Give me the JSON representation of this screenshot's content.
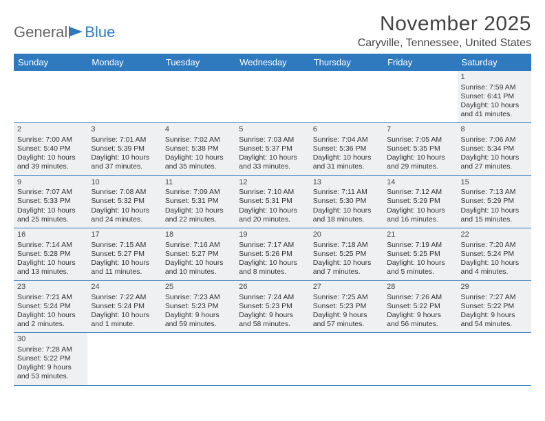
{
  "brand": {
    "part1": "General",
    "part2": "Blue",
    "logo_color": "#2f7abf",
    "text_color": "#666666"
  },
  "title": "November 2025",
  "location": "Caryville, Tennessee, United States",
  "colors": {
    "header_bg": "#2f7abf",
    "header_text": "#ffffff",
    "cell_gray": "#eef0f1",
    "divider": "#2f7abf"
  },
  "day_names": [
    "Sunday",
    "Monday",
    "Tuesday",
    "Wednesday",
    "Thursday",
    "Friday",
    "Saturday"
  ],
  "weeks": [
    [
      null,
      null,
      null,
      null,
      null,
      null,
      {
        "n": "1",
        "sr": "Sunrise: 7:59 AM",
        "ss": "Sunset: 6:41 PM",
        "dl": "Daylight: 10 hours and 41 minutes."
      }
    ],
    [
      {
        "n": "2",
        "sr": "Sunrise: 7:00 AM",
        "ss": "Sunset: 5:40 PM",
        "dl": "Daylight: 10 hours and 39 minutes."
      },
      {
        "n": "3",
        "sr": "Sunrise: 7:01 AM",
        "ss": "Sunset: 5:39 PM",
        "dl": "Daylight: 10 hours and 37 minutes."
      },
      {
        "n": "4",
        "sr": "Sunrise: 7:02 AM",
        "ss": "Sunset: 5:38 PM",
        "dl": "Daylight: 10 hours and 35 minutes."
      },
      {
        "n": "5",
        "sr": "Sunrise: 7:03 AM",
        "ss": "Sunset: 5:37 PM",
        "dl": "Daylight: 10 hours and 33 minutes."
      },
      {
        "n": "6",
        "sr": "Sunrise: 7:04 AM",
        "ss": "Sunset: 5:36 PM",
        "dl": "Daylight: 10 hours and 31 minutes."
      },
      {
        "n": "7",
        "sr": "Sunrise: 7:05 AM",
        "ss": "Sunset: 5:35 PM",
        "dl": "Daylight: 10 hours and 29 minutes."
      },
      {
        "n": "8",
        "sr": "Sunrise: 7:06 AM",
        "ss": "Sunset: 5:34 PM",
        "dl": "Daylight: 10 hours and 27 minutes."
      }
    ],
    [
      {
        "n": "9",
        "sr": "Sunrise: 7:07 AM",
        "ss": "Sunset: 5:33 PM",
        "dl": "Daylight: 10 hours and 25 minutes."
      },
      {
        "n": "10",
        "sr": "Sunrise: 7:08 AM",
        "ss": "Sunset: 5:32 PM",
        "dl": "Daylight: 10 hours and 24 minutes."
      },
      {
        "n": "11",
        "sr": "Sunrise: 7:09 AM",
        "ss": "Sunset: 5:31 PM",
        "dl": "Daylight: 10 hours and 22 minutes."
      },
      {
        "n": "12",
        "sr": "Sunrise: 7:10 AM",
        "ss": "Sunset: 5:31 PM",
        "dl": "Daylight: 10 hours and 20 minutes."
      },
      {
        "n": "13",
        "sr": "Sunrise: 7:11 AM",
        "ss": "Sunset: 5:30 PM",
        "dl": "Daylight: 10 hours and 18 minutes."
      },
      {
        "n": "14",
        "sr": "Sunrise: 7:12 AM",
        "ss": "Sunset: 5:29 PM",
        "dl": "Daylight: 10 hours and 16 minutes."
      },
      {
        "n": "15",
        "sr": "Sunrise: 7:13 AM",
        "ss": "Sunset: 5:29 PM",
        "dl": "Daylight: 10 hours and 15 minutes."
      }
    ],
    [
      {
        "n": "16",
        "sr": "Sunrise: 7:14 AM",
        "ss": "Sunset: 5:28 PM",
        "dl": "Daylight: 10 hours and 13 minutes."
      },
      {
        "n": "17",
        "sr": "Sunrise: 7:15 AM",
        "ss": "Sunset: 5:27 PM",
        "dl": "Daylight: 10 hours and 11 minutes."
      },
      {
        "n": "18",
        "sr": "Sunrise: 7:16 AM",
        "ss": "Sunset: 5:27 PM",
        "dl": "Daylight: 10 hours and 10 minutes."
      },
      {
        "n": "19",
        "sr": "Sunrise: 7:17 AM",
        "ss": "Sunset: 5:26 PM",
        "dl": "Daylight: 10 hours and 8 minutes."
      },
      {
        "n": "20",
        "sr": "Sunrise: 7:18 AM",
        "ss": "Sunset: 5:25 PM",
        "dl": "Daylight: 10 hours and 7 minutes."
      },
      {
        "n": "21",
        "sr": "Sunrise: 7:19 AM",
        "ss": "Sunset: 5:25 PM",
        "dl": "Daylight: 10 hours and 5 minutes."
      },
      {
        "n": "22",
        "sr": "Sunrise: 7:20 AM",
        "ss": "Sunset: 5:24 PM",
        "dl": "Daylight: 10 hours and 4 minutes."
      }
    ],
    [
      {
        "n": "23",
        "sr": "Sunrise: 7:21 AM",
        "ss": "Sunset: 5:24 PM",
        "dl": "Daylight: 10 hours and 2 minutes."
      },
      {
        "n": "24",
        "sr": "Sunrise: 7:22 AM",
        "ss": "Sunset: 5:24 PM",
        "dl": "Daylight: 10 hours and 1 minute."
      },
      {
        "n": "25",
        "sr": "Sunrise: 7:23 AM",
        "ss": "Sunset: 5:23 PM",
        "dl": "Daylight: 9 hours and 59 minutes."
      },
      {
        "n": "26",
        "sr": "Sunrise: 7:24 AM",
        "ss": "Sunset: 5:23 PM",
        "dl": "Daylight: 9 hours and 58 minutes."
      },
      {
        "n": "27",
        "sr": "Sunrise: 7:25 AM",
        "ss": "Sunset: 5:23 PM",
        "dl": "Daylight: 9 hours and 57 minutes."
      },
      {
        "n": "28",
        "sr": "Sunrise: 7:26 AM",
        "ss": "Sunset: 5:22 PM",
        "dl": "Daylight: 9 hours and 56 minutes."
      },
      {
        "n": "29",
        "sr": "Sunrise: 7:27 AM",
        "ss": "Sunset: 5:22 PM",
        "dl": "Daylight: 9 hours and 54 minutes."
      }
    ],
    [
      {
        "n": "30",
        "sr": "Sunrise: 7:28 AM",
        "ss": "Sunset: 5:22 PM",
        "dl": "Daylight: 9 hours and 53 minutes."
      },
      null,
      null,
      null,
      null,
      null,
      null
    ]
  ]
}
